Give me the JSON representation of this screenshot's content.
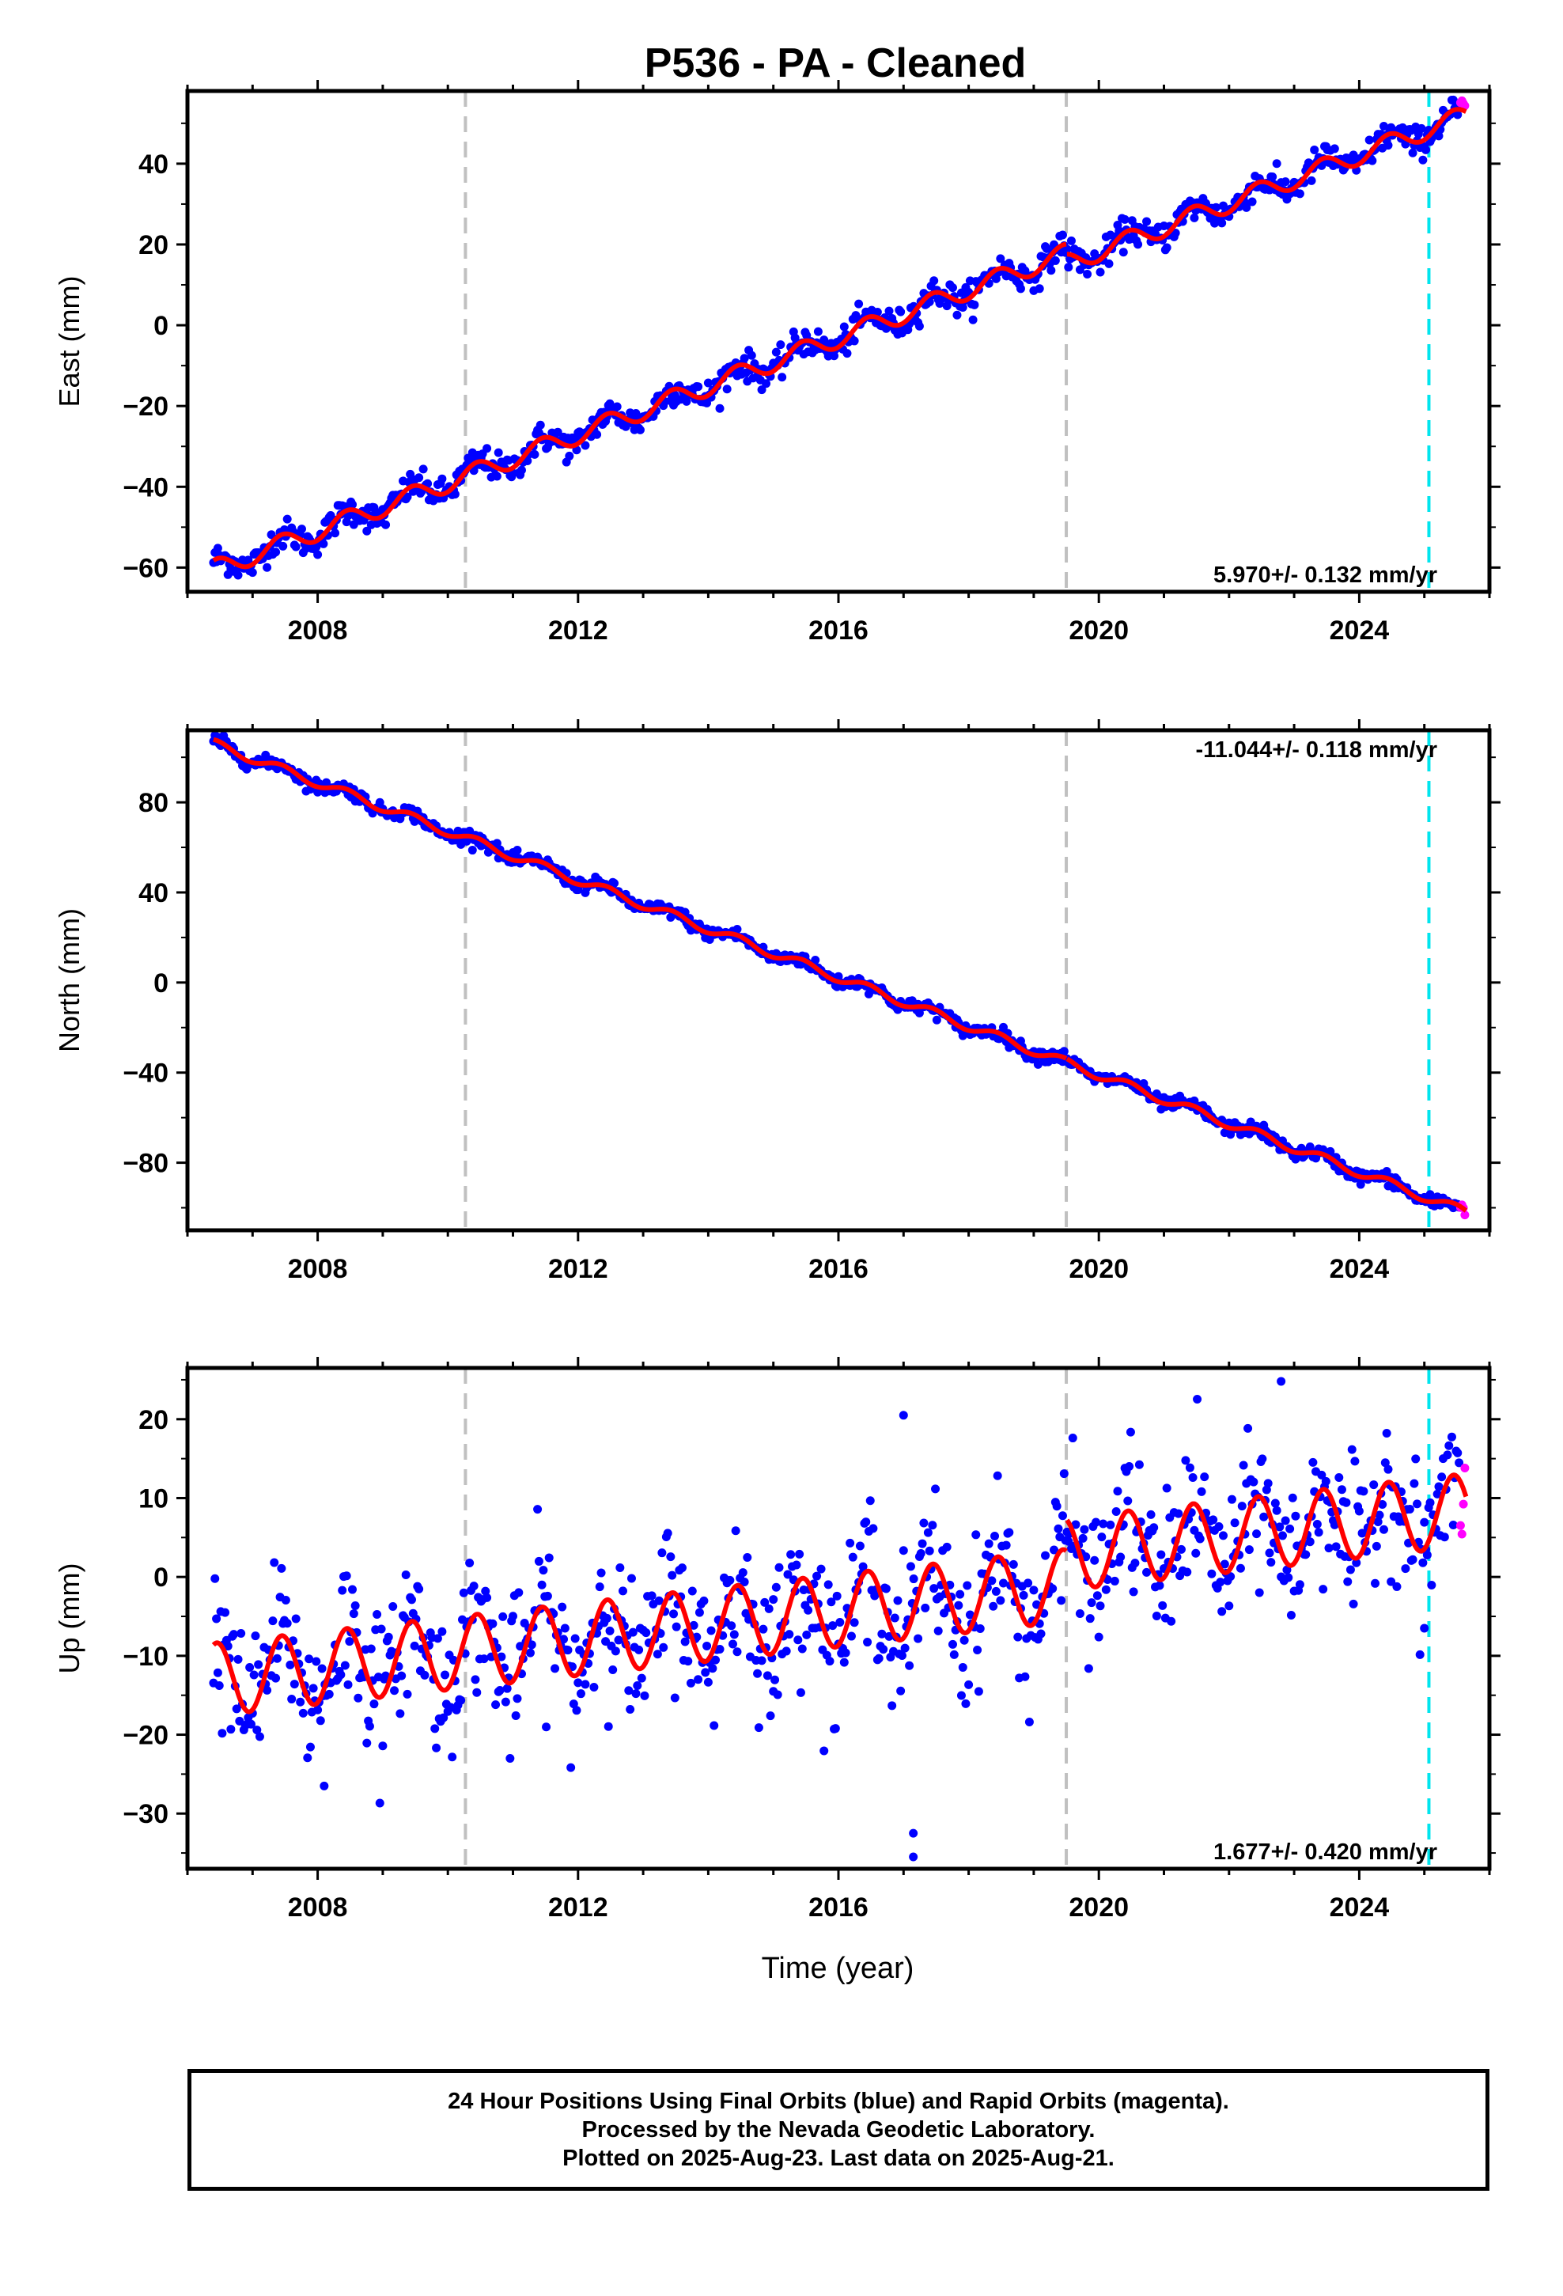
{
  "chart_data": {
    "type": "scatter",
    "title": "P536  - PA - Cleaned",
    "xlabel": "Time (year)",
    "x_ticks": [
      2008,
      2012,
      2016,
      2020,
      2024
    ],
    "xlim": [
      2006.0,
      2026.0
    ],
    "x_start": 2006.4,
    "x_end": 2025.64,
    "vlines_gray": [
      2010.27,
      2019.5
    ],
    "vline_cyan": 2025.07,
    "colors": {
      "final": "#0000ff",
      "rapid": "#ff00ff",
      "model": "#ff0000",
      "gray_line": "#c0c0c0",
      "cyan_line": "#00e5ee"
    },
    "panels": [
      {
        "name": "East",
        "ylabel": "East (mm)",
        "ylim": [
          -66,
          58
        ],
        "yticks": [
          -60,
          -40,
          -20,
          0,
          20,
          40
        ],
        "yticklabels": [
          "−60",
          "−40",
          "−20",
          "0",
          "20",
          "40"
        ],
        "velocity": "5.970+/- 0.132 mm/yr",
        "velocity_position": "bottom-right",
        "start_value": -60.5,
        "end_value": 52,
        "offset_at_2019_5": -2.5,
        "annual_amplitude": 2.4,
        "scatter": 1.8,
        "outliers": []
      },
      {
        "name": "North",
        "ylabel": "North (mm)",
        "ylim": [
          -110,
          112
        ],
        "yticks": [
          -80,
          -40,
          0,
          40,
          80
        ],
        "yticklabels": [
          "−80",
          "−40",
          "0",
          "40",
          "80"
        ],
        "velocity": "-11.044+/- 0.118 mm/yr",
        "velocity_position": "top-right",
        "start_value": 106,
        "end_value": -102,
        "offset_at_2019_5": 0,
        "annual_amplitude": 2.0,
        "scatter": 1.5,
        "outliers": []
      },
      {
        "name": "Up",
        "ylabel": "Up (mm)",
        "ylim": [
          -37,
          26.5
        ],
        "yticks": [
          -30,
          -20,
          -10,
          0,
          10,
          20
        ],
        "yticklabels": [
          "−30",
          "−20",
          "−10",
          "0",
          "10",
          "20"
        ],
        "velocity": "1.677+/- 0.420 mm/yr",
        "velocity_position": "bottom-right",
        "start_value": -13,
        "end_value": 8.5,
        "offset_at_2019_5": 4,
        "annual_amplitude": 4.6,
        "scatter": 3.2,
        "outliers": [
          {
            "x": 2008.1,
            "y": -26.5
          },
          {
            "x": 2017.15,
            "y": -32.5
          },
          {
            "x": 2017.15,
            "y": -35.5
          },
          {
            "x": 2017.0,
            "y": 20.5
          },
          {
            "x": 2022.8,
            "y": 24.8
          },
          {
            "x": 2015.0,
            "y": -14.5
          },
          {
            "x": 2025.0,
            "y": -6.5
          }
        ]
      }
    ]
  },
  "footer": {
    "line1": "24 Hour Positions Using Final Orbits (blue) and Rapid Orbits (magenta).",
    "line2": "Processed by the Nevada Geodetic Laboratory.",
    "line3": "Plotted on 2025-Aug-23. Last data on 2025-Aug-21."
  }
}
